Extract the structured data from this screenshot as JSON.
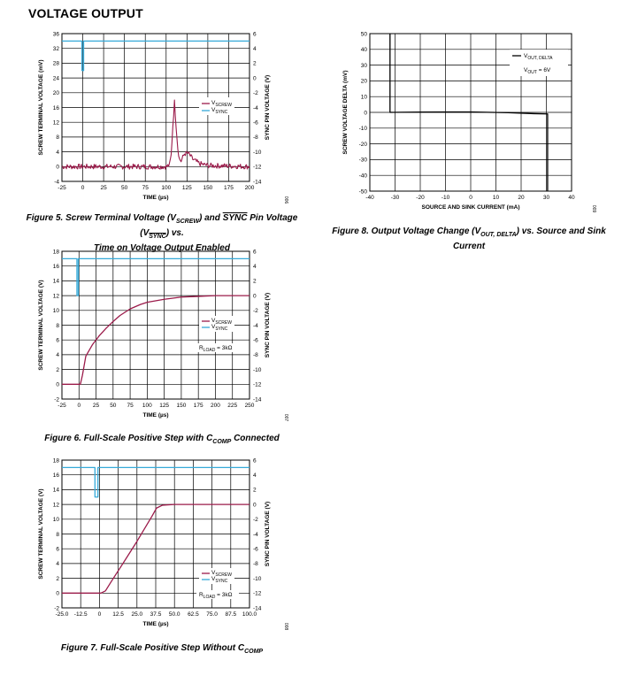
{
  "page": {
    "section_title": "VOLTAGE OUTPUT"
  },
  "colors": {
    "vscrew": "#9b1b4a",
    "vsync": "#35a9d8",
    "grid": "#000000",
    "vout": "#000000"
  },
  "chart_data": [
    {
      "id": "fig5",
      "type": "line",
      "caption": "Figure 5. Screw Terminal Voltage (V SCREW) and SYNC Pin Voltage (V SYNC) vs. Time on Voltage Output Enabled",
      "caption_lines": [
        "Figure 5. Screw Terminal Voltage (VSCREW) and SYNC Pin Voltage (VSYNC) vs.",
        "Time on Voltage Output Enabled"
      ],
      "xlabel": "TIME (µs)",
      "ylabel": "SCREW TERMINAL VOLTAGE (mV)",
      "y2label": "SYNC PIN VOLTAGE (V)",
      "xlim": [
        -25,
        200
      ],
      "xticks": [
        -25,
        0,
        25,
        50,
        75,
        100,
        125,
        150,
        175,
        200
      ],
      "ylim": [
        -4,
        36
      ],
      "yticks": [
        -4,
        0,
        4,
        8,
        12,
        16,
        20,
        24,
        28,
        32,
        36
      ],
      "y2lim": [
        -14,
        6
      ],
      "y2ticks": [
        -14,
        -12,
        -10,
        -8,
        -6,
        -4,
        -2,
        0,
        2,
        4,
        6
      ],
      "legend": [
        "VSCREW",
        "VSYNC"
      ],
      "legend_placement": "upper-right",
      "annotations": [],
      "fig_id": "006",
      "series": [
        {
          "name": "VSCREW",
          "axis": "left",
          "color_key": "vscrew",
          "kind": "noisy",
          "points": [
            [
              -25,
              0
            ],
            [
              100,
              0
            ],
            [
              104,
              0.4
            ],
            [
              106,
              3
            ],
            [
              108,
              11
            ],
            [
              110,
              17.5
            ],
            [
              112,
              11
            ],
            [
              114,
              5
            ],
            [
              116,
              2
            ],
            [
              118,
              1.5
            ],
            [
              120,
              2.5
            ],
            [
              122,
              3.5
            ],
            [
              126,
              3.6
            ],
            [
              128,
              3.2
            ],
            [
              132,
              2
            ],
            [
              140,
              0.8
            ],
            [
              150,
              0.3
            ],
            [
              170,
              0.2
            ],
            [
              200,
              0
            ]
          ]
        },
        {
          "name": "VSYNC",
          "axis": "right",
          "color_key": "vsync",
          "kind": "step",
          "points": [
            [
              -25,
              5
            ],
            [
              -1,
              5
            ],
            [
              -1,
              1
            ],
            [
              1,
              1
            ],
            [
              1,
              5
            ],
            [
              200,
              5
            ]
          ]
        }
      ]
    },
    {
      "id": "fig6",
      "type": "line",
      "caption_lines": [
        "Figure 6. Full-Scale Positive Step with CCOMP Connected"
      ],
      "xlabel": "TIME (µs)",
      "ylabel": "SCREW TERMINAL VOLTAGE (V)",
      "y2label": "SYNC PIN VOLTAGE (V)",
      "xlim": [
        -25,
        250
      ],
      "xticks": [
        -25,
        0,
        25,
        50,
        75,
        100,
        125,
        150,
        175,
        200,
        225,
        250
      ],
      "ylim": [
        -2,
        18
      ],
      "yticks": [
        -2,
        0,
        2,
        4,
        6,
        8,
        10,
        12,
        14,
        16,
        18
      ],
      "y2lim": [
        -14,
        6
      ],
      "y2ticks": [
        -14,
        -12,
        -10,
        -8,
        -6,
        -4,
        -2,
        0,
        2,
        4,
        6
      ],
      "legend": [
        "VSCREW",
        "VSYNC"
      ],
      "legend_placement": "center-right",
      "annotations": [
        "RLOAD = 3kΩ"
      ],
      "fig_id": "007",
      "series": [
        {
          "name": "VSCREW",
          "axis": "left",
          "color_key": "vscrew",
          "kind": "line",
          "points": [
            [
              -25,
              0
            ],
            [
              2,
              0
            ],
            [
              5,
              1.2
            ],
            [
              10,
              3.8
            ],
            [
              20,
              5.4
            ],
            [
              30,
              6.6
            ],
            [
              40,
              7.6
            ],
            [
              50,
              8.5
            ],
            [
              60,
              9.3
            ],
            [
              75,
              10.2
            ],
            [
              90,
              10.8
            ],
            [
              100,
              11.1
            ],
            [
              125,
              11.5
            ],
            [
              150,
              11.8
            ],
            [
              175,
              11.9
            ],
            [
              200,
              12
            ],
            [
              250,
              12
            ]
          ]
        },
        {
          "name": "VSYNC",
          "axis": "right",
          "color_key": "vsync",
          "kind": "step",
          "points": [
            [
              -25,
              5
            ],
            [
              -3,
              5
            ],
            [
              -3,
              0
            ],
            [
              -1,
              0
            ],
            [
              -1,
              5
            ],
            [
              250,
              5
            ]
          ]
        }
      ]
    },
    {
      "id": "fig7",
      "type": "line",
      "caption_lines": [
        "Figure 7. Full-Scale Positive Step Without CCOMP"
      ],
      "xlabel": "TIME (µs)",
      "ylabel": "SCREW TERMINAL VOLTAGE (V)",
      "y2label": "SYNC PIN VOLTAGE (V)",
      "xlim": [
        -25,
        100
      ],
      "xticks": [
        "-25.0",
        "-12.5",
        "0",
        "12.5",
        "25.0",
        "37.5",
        "50.0",
        "62.5",
        "75.0",
        "87.5",
        "100.0"
      ],
      "ylim": [
        -2,
        18
      ],
      "yticks": [
        -2,
        0,
        2,
        4,
        6,
        8,
        10,
        12,
        14,
        16,
        18
      ],
      "y2lim": [
        -14,
        6
      ],
      "y2ticks": [
        -14,
        -12,
        -10,
        -8,
        -6,
        -4,
        -2,
        0,
        2,
        4,
        6
      ],
      "legend": [
        "VSCREW",
        "VSYNC"
      ],
      "legend_placement": "lower-right",
      "annotations": [
        "RLOAD = 3kΩ"
      ],
      "fig_id": "008",
      "series": [
        {
          "name": "VSCREW",
          "axis": "left",
          "color_key": "vscrew",
          "kind": "line",
          "points": [
            [
              -25,
              0
            ],
            [
              1,
              0
            ],
            [
              4,
              0.3
            ],
            [
              8,
              1.6
            ],
            [
              15,
              3.8
            ],
            [
              25,
              7
            ],
            [
              35,
              10.4
            ],
            [
              38,
              11.5
            ],
            [
              42,
              11.9
            ],
            [
              50,
              12
            ],
            [
              100,
              12
            ]
          ]
        },
        {
          "name": "VSYNC",
          "axis": "right",
          "color_key": "vsync",
          "kind": "step",
          "points": [
            [
              -25,
              5
            ],
            [
              -3,
              5
            ],
            [
              -3,
              1
            ],
            [
              -1,
              1
            ],
            [
              -1,
              5
            ],
            [
              100,
              5
            ]
          ]
        }
      ]
    },
    {
      "id": "fig8",
      "type": "line",
      "caption_lines": [
        "Figure 8. Output Voltage Change (VOUT, DELTA) vs. Source and Sink Current"
      ],
      "xlabel": "SOURCE AND SINK CURRENT (mA)",
      "ylabel": "SCREW VOLTAGE DELTA (mV)",
      "xlim": [
        -40,
        40
      ],
      "xticks": [
        -40,
        -30,
        -20,
        -10,
        0,
        10,
        20,
        30,
        40
      ],
      "ylim": [
        -50,
        50
      ],
      "yticks": [
        -50,
        -40,
        -30,
        -20,
        -10,
        0,
        10,
        20,
        30,
        40,
        50
      ],
      "legend": [
        "VOUT, DELTA"
      ],
      "legend_placement": "top-right",
      "annotations": [
        "VOUT = 6V"
      ],
      "fig_id": "009",
      "series": [
        {
          "name": "VOUT, DELTA",
          "axis": "left",
          "color_key": "vout",
          "kind": "line",
          "points": [
            [
              -32,
              50
            ],
            [
              -32,
              0
            ],
            [
              -20,
              0.2
            ],
            [
              0,
              0.3
            ],
            [
              15,
              -0.2
            ],
            [
              25,
              -0.8
            ],
            [
              30.5,
              -1
            ],
            [
              30.5,
              -50
            ]
          ]
        }
      ]
    }
  ],
  "fig5_labels": {
    "legend_vscrew_main": "V",
    "legend_vscrew_sub": "SCREW",
    "legend_vsync_main": "V",
    "legend_vsync_sub": "SYNC"
  },
  "fig8_labels": {
    "legend_main": "V",
    "legend_sub": "OUT, DELTA",
    "annot_main": "V",
    "annot_sub": "OUT",
    "annot_rest": " = 6V"
  },
  "rload_labels": {
    "main": "R",
    "sub": "LOAD",
    "rest": " = 3kΩ"
  }
}
